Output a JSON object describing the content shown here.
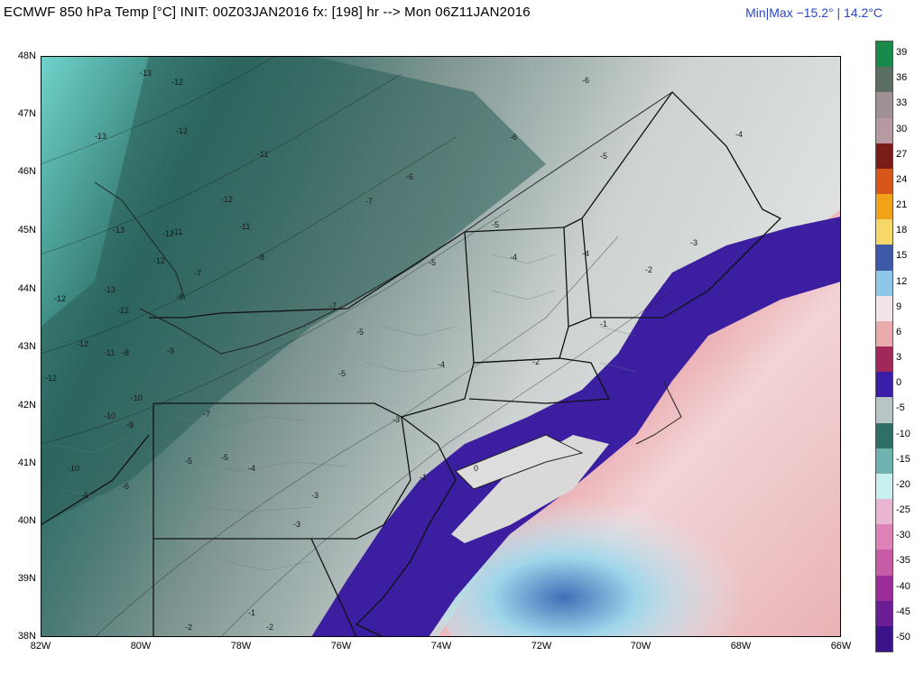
{
  "header": {
    "title": "ECMWF 850 hPa Temp [°C]  INIT: 00Z03JAN2016  fx: [198] hr  --> Mon 06Z11JAN2016",
    "minmax": "Min|Max −15.2° | 14.2°C"
  },
  "map": {
    "lat_labels": [
      "48N",
      "47N",
      "46N",
      "45N",
      "44N",
      "43N",
      "42N",
      "41N",
      "40N",
      "39N",
      "38N"
    ],
    "lon_labels": [
      "82W",
      "80W",
      "78W",
      "76W",
      "74W",
      "72W",
      "70W",
      "68W",
      "66W"
    ],
    "contour_labels": [
      "-13",
      "-12",
      "-13",
      "-12",
      "-11",
      "-12",
      "-12",
      "-11",
      "-11",
      "-13",
      "-12",
      "-12",
      "-13",
      "-12",
      "-12",
      "-11",
      "-12",
      "-10",
      "-10",
      "-9",
      "-9",
      "-8",
      "-8",
      "-7",
      "-7",
      "-7",
      "-6",
      "-6",
      "-6",
      "-5",
      "-5",
      "-5",
      "-5",
      "-4",
      "-4",
      "-4",
      "-3",
      "-3",
      "-3",
      "-2",
      "-2",
      "-2",
      "-1",
      "-1",
      "0",
      "-10",
      "-9",
      "-8",
      "-7",
      "-6",
      "-5",
      "-4",
      "-3",
      "-2",
      "-1",
      "-6",
      "-5",
      "-5",
      "-4"
    ]
  },
  "colorbar": {
    "labels": [
      "39",
      "36",
      "33",
      "30",
      "27",
      "24",
      "21",
      "18",
      "15",
      "12",
      "9",
      "6",
      "3",
      "0",
      "-5",
      "-10",
      "-15",
      "-20",
      "-25",
      "-30",
      "-35",
      "-40",
      "-45",
      "-50"
    ],
    "colors": [
      "#1a8a4a",
      "#5a6e62",
      "#a08f94",
      "#b79aa1",
      "#7c1c18",
      "#d9561b",
      "#f0a218",
      "#f6d86a",
      "#3d5aa8",
      "#8ec7e8",
      "#f2e4e8",
      "#e9aaab",
      "#a3285a",
      "#3b1ea8",
      "#b9c5c5",
      "#2f6f66",
      "#6fb3b0",
      "#c9eeee",
      "#e8b6d1",
      "#de83b8",
      "#c75ba6",
      "#9b2c9a",
      "#6b1d96",
      "#3a1289"
    ]
  }
}
